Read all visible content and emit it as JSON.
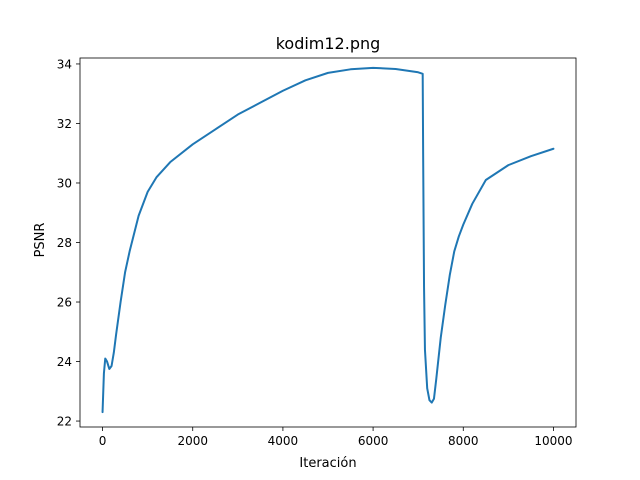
{
  "chart_data": {
    "type": "line",
    "title": "kodim12.png",
    "xlabel": "Iteración",
    "ylabel": "PSNR",
    "xlim": [
      -500,
      10500
    ],
    "ylim": [
      21.8,
      34.2
    ],
    "xticks": [
      0,
      2000,
      4000,
      6000,
      8000,
      10000
    ],
    "yticks": [
      22,
      24,
      26,
      28,
      30,
      32,
      34
    ],
    "grid": false,
    "legend": "none",
    "series": [
      {
        "color": "#1f77b4",
        "x": [
          0,
          30,
          60,
          100,
          150,
          200,
          250,
          300,
          400,
          500,
          600,
          800,
          1000,
          1200,
          1500,
          2000,
          2500,
          3000,
          3500,
          4000,
          4500,
          5000,
          5500,
          6000,
          6500,
          7000,
          7100,
          7110,
          7130,
          7150,
          7200,
          7250,
          7300,
          7350,
          7400,
          7500,
          7600,
          7700,
          7800,
          7900,
          8000,
          8200,
          8500,
          9000,
          9500,
          10000
        ],
        "y": [
          22.3,
          23.6,
          24.1,
          24.0,
          23.75,
          23.85,
          24.3,
          24.9,
          26.0,
          27.0,
          27.7,
          28.9,
          29.7,
          30.2,
          30.7,
          31.3,
          31.8,
          32.3,
          32.7,
          33.1,
          33.45,
          33.7,
          33.82,
          33.87,
          33.83,
          33.72,
          33.67,
          31.0,
          26.5,
          24.4,
          23.1,
          22.7,
          22.62,
          22.75,
          23.4,
          24.8,
          25.9,
          26.9,
          27.7,
          28.2,
          28.6,
          29.3,
          30.1,
          30.6,
          30.9,
          31.15
        ]
      }
    ]
  }
}
